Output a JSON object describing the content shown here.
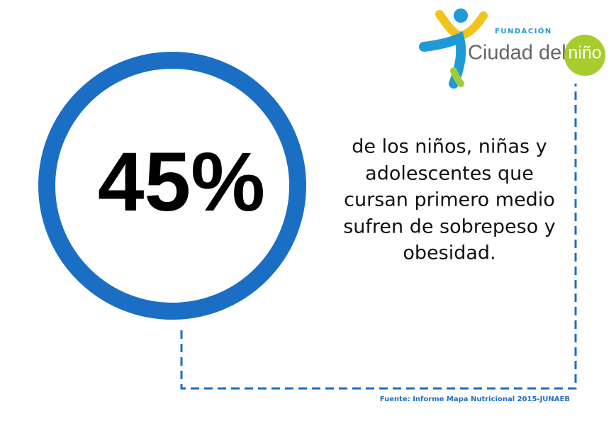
{
  "stat": "45%",
  "description": [
    "de los niños, niñas y",
    "adolescentes que",
    "cursan primero medio",
    "sufren de sobrepeso y",
    "obesidad."
  ],
  "logo": {
    "top": "FUNDACIÓN",
    "name": "Ciudad del",
    "highlight": "niño"
  },
  "source": "Fuente: Informe Mapa  Nutricional  2015-JUNAEB"
}
